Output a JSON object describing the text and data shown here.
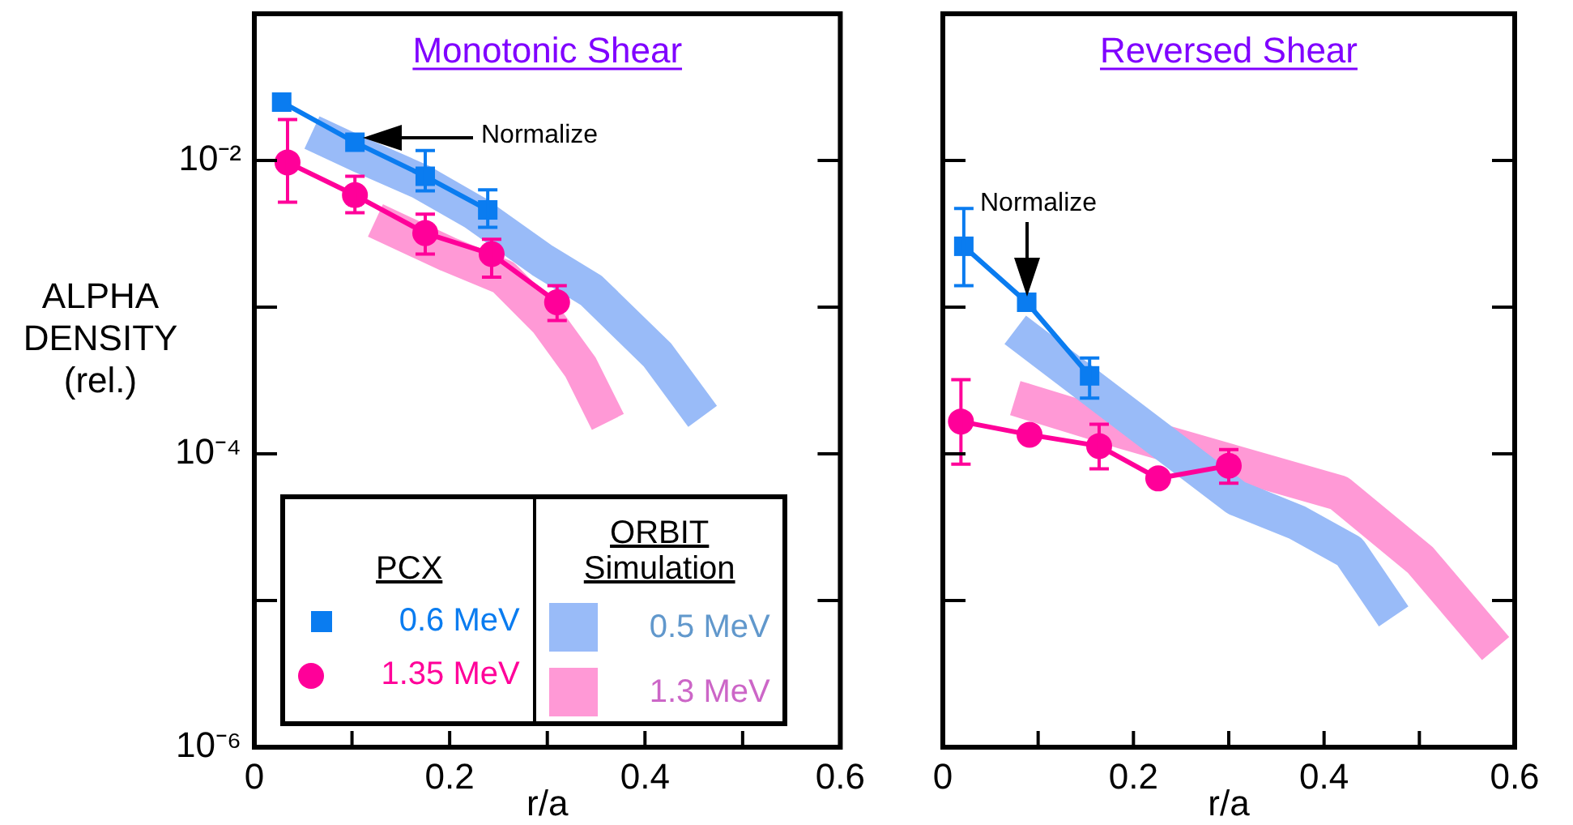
{
  "chart_data": [
    {
      "type": "line",
      "title": "Monotonic Shear",
      "ylabel": "ALPHA DENSITY (rel.)",
      "xlabel": "r/a",
      "log": "y",
      "legend": "bottom",
      "legend_title": "PCX",
      "annotations": [
        "Normalize",
        "ORBIT Simulation"
      ],
      "xlim": [
        0,
        0.6
      ],
      "xticks": [
        0,
        {
          "value": 0.1,
          "label": null
        },
        0.2,
        {
          "value": 0.3,
          "label": null
        },
        0.4,
        {
          "value": 0.5,
          "label": null
        },
        0.6
      ],
      "ylim": [
        1e-06,
        0.1
      ],
      "yticks": [
        {
          "value": 1e-06,
          "label": "10⁻⁶"
        },
        {
          "value": 1e-05,
          "label": null
        },
        {
          "value": 0.0001,
          "label": "10⁻⁴"
        },
        {
          "value": 0.001,
          "label": null
        },
        {
          "value": 0.01,
          "label": "10⁻²"
        },
        {
          "value": 0.1,
          "label": null
        }
      ],
      "series": [
        {
          "name": "0.6 MeV",
          "marker": "square",
          "color": "#0a7cf0",
          "x": [
            0.028,
            0.103,
            0.175,
            0.239
          ],
          "values": [
            0.025,
            0.0133,
            0.0078,
            0.0046
          ],
          "errors": [
            null,
            null,
            [
              0.0062,
              0.0117
            ],
            [
              0.0035,
              0.0063
            ]
          ]
        },
        {
          "name": "1.35 MeV",
          "marker": "circle",
          "color": "#ff0099",
          "x": [
            0.034,
            0.103,
            0.175,
            0.243,
            0.31
          ],
          "values": [
            0.0097,
            0.0058,
            0.0032,
            0.0023,
            0.00108
          ],
          "errors": [
            [
              0.0052,
              0.019
            ],
            [
              0.0044,
              0.0078
            ],
            [
              0.0023,
              0.0043
            ],
            [
              0.0016,
              0.0029
            ],
            [
              0.00081,
              0.0014
            ]
          ]
        },
        {
          "name": "0.5 MeV",
          "color": "#99bbf8",
          "x": [
            0.059,
            0.107,
            0.17,
            0.226,
            0.294,
            0.345,
            0.413,
            0.459
          ],
          "values": [
            0.0155,
            0.011,
            0.0072,
            0.0044,
            0.0021,
            0.0013,
            0.00047,
            0.00018
          ]
        },
        {
          "name": "1.3 MeV",
          "color": "#ff99d6",
          "x": [
            0.124,
            0.198,
            0.255,
            0.3,
            0.334,
            0.362
          ],
          "values": [
            0.0039,
            0.0023,
            0.0016,
            0.0008,
            0.00039,
            0.000165
          ]
        }
      ]
    },
    {
      "type": "line",
      "title": "Reversed Shear",
      "xlabel": "r/a",
      "log": "y",
      "tick_labels": "x",
      "annotations": [
        "Normalize"
      ],
      "xlim": [
        0,
        0.6
      ],
      "xticks": [
        0,
        {
          "value": 0.1,
          "label": null
        },
        0.2,
        {
          "value": 0.3,
          "label": null
        },
        0.4,
        {
          "value": 0.5,
          "label": null
        },
        0.6
      ],
      "ylim": [
        1e-06,
        0.1
      ],
      "yticks": [
        {
          "value": 1e-06,
          "label": null
        },
        {
          "value": 1e-05,
          "label": null
        },
        {
          "value": 0.0001,
          "label": null
        },
        {
          "value": 0.001,
          "label": null
        },
        {
          "value": 0.01,
          "label": null
        },
        {
          "value": 0.1,
          "label": null
        }
      ],
      "series": [
        {
          "marker": "square",
          "color": "#0a7cf0",
          "x": [
            0.022,
            0.088,
            0.154
          ],
          "values": [
            0.0026,
            0.00108,
            0.00034
          ],
          "errors": [
            [
              0.0014,
              0.0047
            ],
            null,
            [
              0.00024,
              0.00045
            ]
          ]
        },
        {
          "marker": "circle",
          "color": "#ff0099",
          "x": [
            0.019,
            0.091,
            0.164,
            0.226,
            0.3
          ],
          "values": [
            0.000166,
            0.000135,
            0.000113,
            6.8e-05,
            8.3e-05
          ],
          "errors": [
            [
              8.5e-05,
              0.00032
            ],
            null,
            [
              7.9e-05,
              0.000159
            ],
            null,
            [
              6.3e-05,
              0.000107
            ]
          ]
        },
        {
          "color": "#99bbf8",
          "x": [
            0.076,
            0.15,
            0.235,
            0.308,
            0.371,
            0.427,
            0.473
          ],
          "values": [
            0.0007,
            null,
            null,
            5e-05,
            3.42e-05,
            2.15e-05,
            7.8e-06
          ]
        },
        {
          "color": "#ff99d6",
          "x": [
            0.076,
            0.189,
            0.303,
            0.416,
            0.501,
            0.58
          ],
          "values": [
            0.00024,
            0.000143,
            null,
            5.4e-05,
            1.89e-05,
            4.7e-06
          ]
        }
      ]
    }
  ]
}
